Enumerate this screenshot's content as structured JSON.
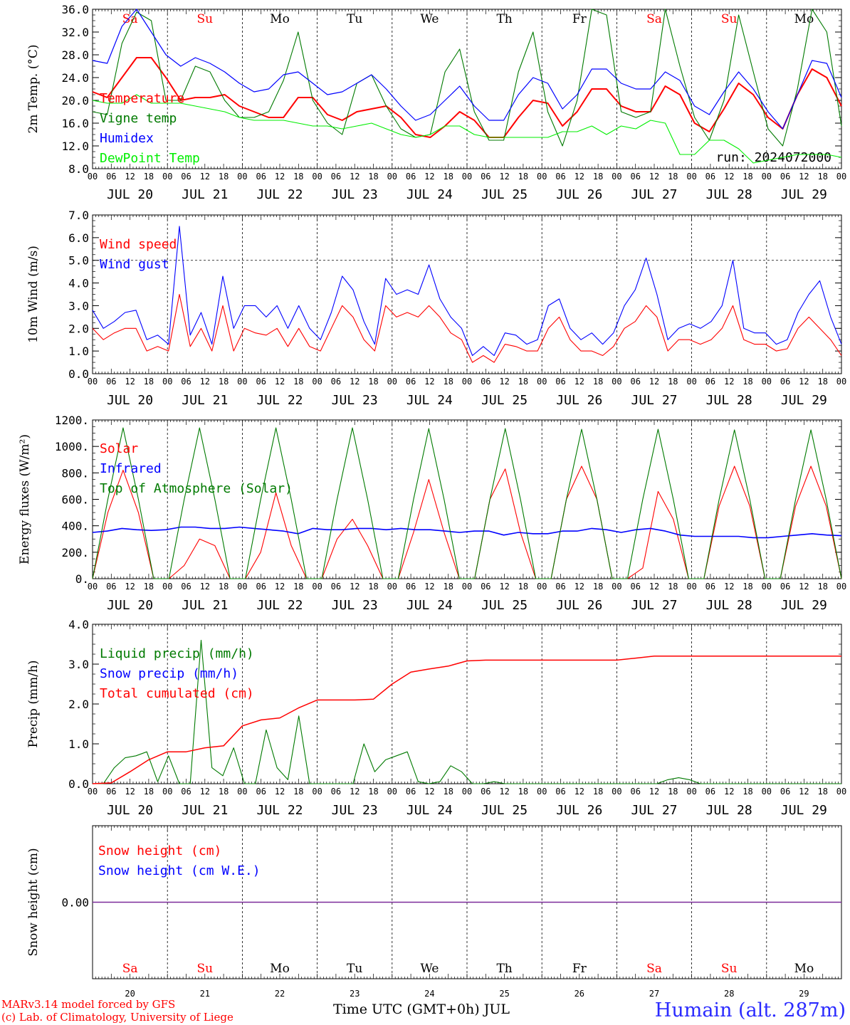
{
  "colors": {
    "temperature": "#ff0000",
    "vigne": "#007a00",
    "humidex": "#0000ff",
    "dewpoint": "#00ee00",
    "weekend": "#ff0000",
    "weekday": "#000000",
    "footer_station": "#2a2aff",
    "snow_line": "#7a2a9a"
  },
  "days": {
    "names": [
      "Sa",
      "Su",
      "Mo",
      "Tu",
      "We",
      "Th",
      "Fr",
      "Sa",
      "Su",
      "Mo"
    ],
    "weekend": [
      true,
      true,
      false,
      false,
      false,
      false,
      false,
      true,
      true,
      false
    ],
    "date_labels": [
      "JUL 20",
      "JUL 21",
      "JUL 22",
      "JUL 23",
      "JUL 24",
      "JUL 25",
      "JUL 26",
      "JUL 27",
      "JUL 28",
      "JUL 29"
    ],
    "day_numbers": [
      "20",
      "21",
      "22",
      "23",
      "24",
      "25",
      "26",
      "27",
      "28",
      "29"
    ],
    "hour_ticks": [
      "00",
      "06",
      "12",
      "18"
    ],
    "final_tick": "00"
  },
  "panels": {
    "temp": {
      "ylabel": "2m Temp. (°C)",
      "ytick_labels": [
        "36.0",
        "32.0",
        "28.0",
        "24.0",
        "20.0",
        "16.0",
        "12.0",
        "8.0"
      ],
      "legend": [
        "Temperature",
        "Vigne temp",
        "Humidex",
        "DewPoint Temp"
      ],
      "run_label": "run: 2024072000"
    },
    "wind": {
      "ylabel": "10m Wind (m/s)",
      "ytick_labels": [
        "7.0",
        "6.0",
        "5.0",
        "4.0",
        "3.0",
        "2.0",
        "1.0",
        "0.0"
      ],
      "legend": [
        "Wind speed",
        "Wind gust"
      ]
    },
    "energy": {
      "ylabel": "Energy fluxes (W/m²)",
      "ytick_labels": [
        "1200.",
        "1000.",
        "800.",
        "600.",
        "400.",
        "200.",
        "0."
      ],
      "legend": [
        "Solar",
        "Infrared",
        "Top of Atmosphere (Solar)"
      ]
    },
    "precip": {
      "ylabel": "Precip (mm/h)",
      "ytick_labels": [
        "4.0",
        "3.0",
        "2.0",
        "1.0",
        "0.0"
      ],
      "legend": [
        "Liquid precip (mm/h)",
        "Snow precip (mm/h)",
        "Total cumulated (cm)"
      ]
    },
    "snow": {
      "ylabel": "Snow height (cm)",
      "ytick_labels": [
        "0.00"
      ],
      "legend": [
        "Snow height (cm)",
        "Snow height (cm W.E.)"
      ]
    }
  },
  "footer": {
    "model_line": "MARv3.14 model forced by GFS",
    "lab_line": "(c) Lab. of Climatology, University of Liege",
    "axis_title": "Time UTC (GMT+0h) JUL",
    "station": "Humain (alt. 287m)"
  },
  "chart_data": [
    {
      "type": "line",
      "ylabel": "2m Temp. (°C)",
      "ylim": [
        8,
        36
      ],
      "x_hours_step": 6,
      "x_range_hours": [
        0,
        240
      ],
      "series": [
        {
          "name": "Temperature",
          "values": [
            21.5,
            20.5,
            24.0,
            27.5,
            27.5,
            24.0,
            20.0,
            20.5,
            20.5,
            21.0,
            19.0,
            18.0,
            17.0,
            17.0,
            20.5,
            20.5,
            17.5,
            16.5,
            18.0,
            18.5,
            19.0,
            17.0,
            14.0,
            13.5,
            15.5,
            18.0,
            16.5,
            13.5,
            13.5,
            17.0,
            20.0,
            19.5,
            15.5,
            18.0,
            22.0,
            22.0,
            19.0,
            18.0,
            18.0,
            22.5,
            21.0,
            16.0,
            14.5,
            18.5,
            23.0,
            21.0,
            17.0,
            15.0,
            21.0,
            25.5,
            24.0,
            19.0
          ]
        },
        {
          "name": "Vigne temp",
          "values": [
            18.0,
            17.5,
            30.0,
            35.5,
            34.0,
            20.0,
            20.0,
            26.0,
            25.0,
            20.0,
            17.0,
            17.0,
            18.0,
            23.5,
            32.0,
            20.0,
            16.0,
            14.0,
            23.0,
            24.5,
            19.0,
            15.0,
            13.5,
            14.0,
            25.0,
            29.0,
            18.0,
            13.0,
            13.0,
            25.0,
            32.0,
            18.0,
            12.0,
            20.0,
            37.0,
            35.0,
            18.0,
            17.0,
            18.0,
            37.0,
            26.0,
            17.0,
            13.0,
            20.0,
            35.0,
            25.0,
            15.0,
            12.0,
            22.0,
            36.0,
            32.0,
            15.5
          ]
        },
        {
          "name": "Humidex",
          "values": [
            27.0,
            26.5,
            33.0,
            36.0,
            32.0,
            28.0,
            26.0,
            27.5,
            26.5,
            25.0,
            23.0,
            21.5,
            22.0,
            24.5,
            25.0,
            23.0,
            21.0,
            21.5,
            23.0,
            24.5,
            22.0,
            19.0,
            16.5,
            17.5,
            20.0,
            22.5,
            19.0,
            16.5,
            16.5,
            21.0,
            24.0,
            23.0,
            18.5,
            21.0,
            25.5,
            25.5,
            23.0,
            22.0,
            22.0,
            25.0,
            23.5,
            19.0,
            17.5,
            21.5,
            25.0,
            22.0,
            18.0,
            15.0,
            21.0,
            27.0,
            26.5,
            20.5
          ]
        },
        {
          "name": "DewPoint Temp",
          "values": [
            20.0,
            19.5,
            19.5,
            21.0,
            19.5,
            19.5,
            19.5,
            19.0,
            18.5,
            18.0,
            17.0,
            16.5,
            16.5,
            16.5,
            16.0,
            15.5,
            15.5,
            15.0,
            15.5,
            16.0,
            15.0,
            14.0,
            13.5,
            14.0,
            15.5,
            15.5,
            14.0,
            13.5,
            13.5,
            13.5,
            13.5,
            13.5,
            14.5,
            14.5,
            15.5,
            14.0,
            15.5,
            15.0,
            16.5,
            16.0,
            10.5,
            10.5,
            13.0,
            13.0,
            11.5,
            9.0,
            9.5,
            10.0,
            10.5,
            10.5,
            10.5,
            10.0
          ]
        }
      ]
    },
    {
      "type": "line",
      "ylabel": "10m Wind (m/s)",
      "ylim": [
        0,
        7
      ],
      "x_hours_step": 6,
      "x_range_hours": [
        0,
        240
      ],
      "series": [
        {
          "name": "Wind speed",
          "values": [
            2.0,
            1.5,
            1.8,
            2.0,
            2.0,
            1.0,
            1.2,
            1.0,
            3.5,
            1.2,
            2.0,
            1.0,
            3.0,
            1.0,
            2.0,
            1.8,
            1.7,
            2.0,
            1.2,
            2.0,
            1.2,
            1.0,
            2.0,
            3.0,
            2.5,
            1.5,
            1.0,
            3.0,
            2.5,
            2.7,
            2.5,
            3.0,
            2.5,
            1.8,
            1.5,
            0.5,
            0.8,
            0.5,
            1.3,
            1.2,
            1.0,
            1.0,
            2.0,
            2.5,
            1.5,
            1.0,
            1.0,
            0.8,
            1.2,
            2.0,
            2.3,
            3.0,
            2.5,
            1.0,
            1.5,
            1.5,
            1.3,
            1.5,
            2.0,
            3.0,
            1.5,
            1.3,
            1.3,
            1.0,
            1.1,
            2.0,
            2.5,
            2.0,
            1.5,
            0.8
          ]
        },
        {
          "name": "Wind gust",
          "values": [
            2.8,
            2.0,
            2.3,
            2.7,
            2.8,
            1.5,
            1.7,
            1.3,
            6.5,
            1.7,
            2.7,
            1.3,
            4.3,
            2.0,
            3.0,
            3.0,
            2.5,
            3.0,
            2.0,
            3.0,
            2.0,
            1.5,
            2.7,
            4.3,
            3.7,
            2.3,
            1.3,
            4.2,
            3.5,
            3.7,
            3.5,
            4.8,
            3.3,
            2.5,
            2.0,
            0.8,
            1.2,
            0.8,
            1.8,
            1.7,
            1.3,
            1.5,
            3.0,
            3.3,
            2.0,
            1.5,
            1.8,
            1.3,
            1.8,
            3.0,
            3.7,
            5.1,
            3.5,
            1.5,
            2.0,
            2.2,
            2.0,
            2.3,
            3.0,
            5.0,
            2.0,
            1.8,
            1.8,
            1.3,
            1.5,
            2.7,
            3.5,
            4.1,
            2.5,
            1.3
          ]
        }
      ]
    },
    {
      "type": "line",
      "ylabel": "Energy fluxes (W/m²)",
      "ylim": [
        0,
        1200
      ],
      "x_hours_step": 6,
      "x_range_hours": [
        0,
        240
      ],
      "series": [
        {
          "name": "Solar",
          "values": [
            0,
            500,
            820,
            500,
            0,
            0,
            100,
            300,
            250,
            0,
            0,
            200,
            650,
            250,
            0,
            0,
            300,
            450,
            250,
            0,
            0,
            350,
            750,
            350,
            0,
            0,
            600,
            830,
            350,
            0,
            0,
            600,
            850,
            600,
            0,
            0,
            80,
            660,
            450,
            0,
            0,
            550,
            850,
            550,
            0,
            0,
            550,
            850,
            550,
            0
          ]
        },
        {
          "name": "Infrared",
          "values": [
            350,
            360,
            380,
            370,
            365,
            370,
            390,
            390,
            380,
            380,
            390,
            380,
            370,
            360,
            340,
            380,
            370,
            370,
            380,
            380,
            370,
            380,
            370,
            370,
            360,
            350,
            360,
            360,
            330,
            350,
            340,
            340,
            360,
            360,
            380,
            370,
            350,
            370,
            380,
            360,
            330,
            320,
            320,
            320,
            320,
            310,
            310,
            320,
            330,
            340,
            330,
            325
          ]
        },
        {
          "name": "Top of Atmosphere (Solar)",
          "values": [
            0,
            600,
            1140,
            600,
            0,
            0,
            600,
            1140,
            600,
            0,
            0,
            600,
            1140,
            600,
            0,
            0,
            600,
            1140,
            600,
            0,
            0,
            600,
            1135,
            600,
            0,
            0,
            600,
            1135,
            600,
            0,
            0,
            600,
            1130,
            600,
            0,
            0,
            600,
            1130,
            600,
            0,
            0,
            600,
            1125,
            600,
            0,
            0,
            600,
            1125,
            600,
            0
          ]
        }
      ]
    },
    {
      "type": "line",
      "ylabel": "Precip (mm/h)",
      "ylim": [
        0,
        4
      ],
      "x_hours_step": 6,
      "x_range_hours": [
        0,
        240
      ],
      "series": [
        {
          "name": "Liquid precip (mm/h)",
          "values": [
            0,
            0,
            0.4,
            0.65,
            0.7,
            0.8,
            0.05,
            0.7,
            0,
            0,
            3.6,
            0.4,
            0.2,
            0.9,
            0,
            0,
            1.35,
            0.4,
            0.1,
            1.7,
            0,
            0,
            0,
            0,
            0,
            1.0,
            0.3,
            0.6,
            0.7,
            0.8,
            0.05,
            0,
            0.05,
            0.45,
            0.3,
            0,
            0,
            0.05,
            0,
            0,
            0,
            0,
            0,
            0,
            0,
            0,
            0,
            0,
            0,
            0,
            0,
            0,
            0,
            0.1,
            0.15,
            0.1,
            0,
            0,
            0,
            0,
            0,
            0,
            0,
            0,
            0,
            0,
            0,
            0,
            0,
            0
          ]
        },
        {
          "name": "Snow precip (mm/h)",
          "values": []
        },
        {
          "name": "Total cumulated (cm)",
          "values": [
            0,
            0.02,
            0.3,
            0.6,
            0.8,
            0.8,
            0.9,
            0.95,
            1.45,
            1.6,
            1.65,
            1.9,
            2.1,
            2.1,
            2.1,
            2.12,
            2.5,
            2.8,
            2.88,
            2.95,
            3.08,
            3.1,
            3.1,
            3.1,
            3.1,
            3.1,
            3.1,
            3.1,
            3.1,
            3.15,
            3.2,
            3.2,
            3.2,
            3.2,
            3.2,
            3.2,
            3.2,
            3.2,
            3.2,
            3.2,
            3.2
          ]
        }
      ]
    },
    {
      "type": "line",
      "ylabel": "Snow height (cm)",
      "ylim": [
        -1,
        1
      ],
      "x_range_hours": [
        0,
        240
      ],
      "series": [
        {
          "name": "Snow height (cm)",
          "values": [
            0,
            0
          ]
        },
        {
          "name": "Snow height (cm W.E.)",
          "values": [
            0,
            0
          ]
        }
      ]
    }
  ]
}
